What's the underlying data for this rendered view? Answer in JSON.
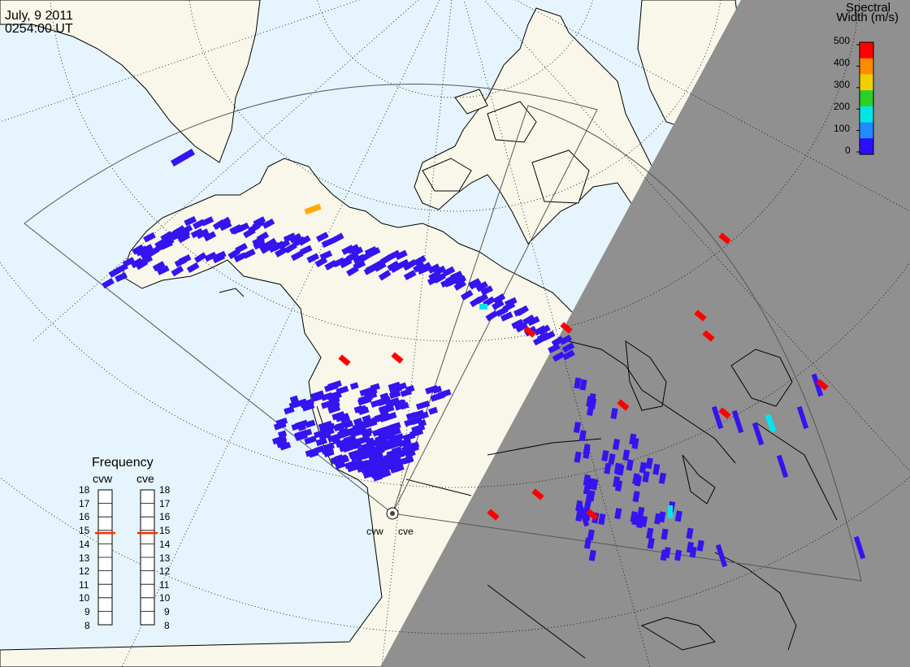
{
  "header": {
    "date": "July, 9 2011",
    "time": "0254:00 UT"
  },
  "colorbar": {
    "title_line1": "Spectral",
    "title_line2": "Width (m/s)",
    "ticks": [
      "500",
      "400",
      "300",
      "200",
      "100",
      "0"
    ],
    "colors": [
      "#ff0000",
      "#ff8c00",
      "#f0d000",
      "#28d028",
      "#00e6e6",
      "#1e8cff",
      "#2a10ff"
    ]
  },
  "sites": {
    "west": "cvw",
    "east": "cve"
  },
  "frequency": {
    "title": "Frequency",
    "col_west": "cvw",
    "col_east": "cve",
    "scale": [
      "18",
      "17",
      "16",
      "15",
      "14",
      "13",
      "12",
      "11",
      "10",
      "9",
      "8"
    ],
    "cvw_mhz": 14.8,
    "cve_mhz": 14.8
  },
  "map_colors": {
    "ocean": "#e6f4fd",
    "land": "#f8f7ea",
    "night": "#909090",
    "echo_low": "#3414f0",
    "echo_high": "#ff0000",
    "echo_mid": "#ffaa00",
    "echo_cyan": "#00e6f0",
    "marker": "#ff2a00"
  }
}
